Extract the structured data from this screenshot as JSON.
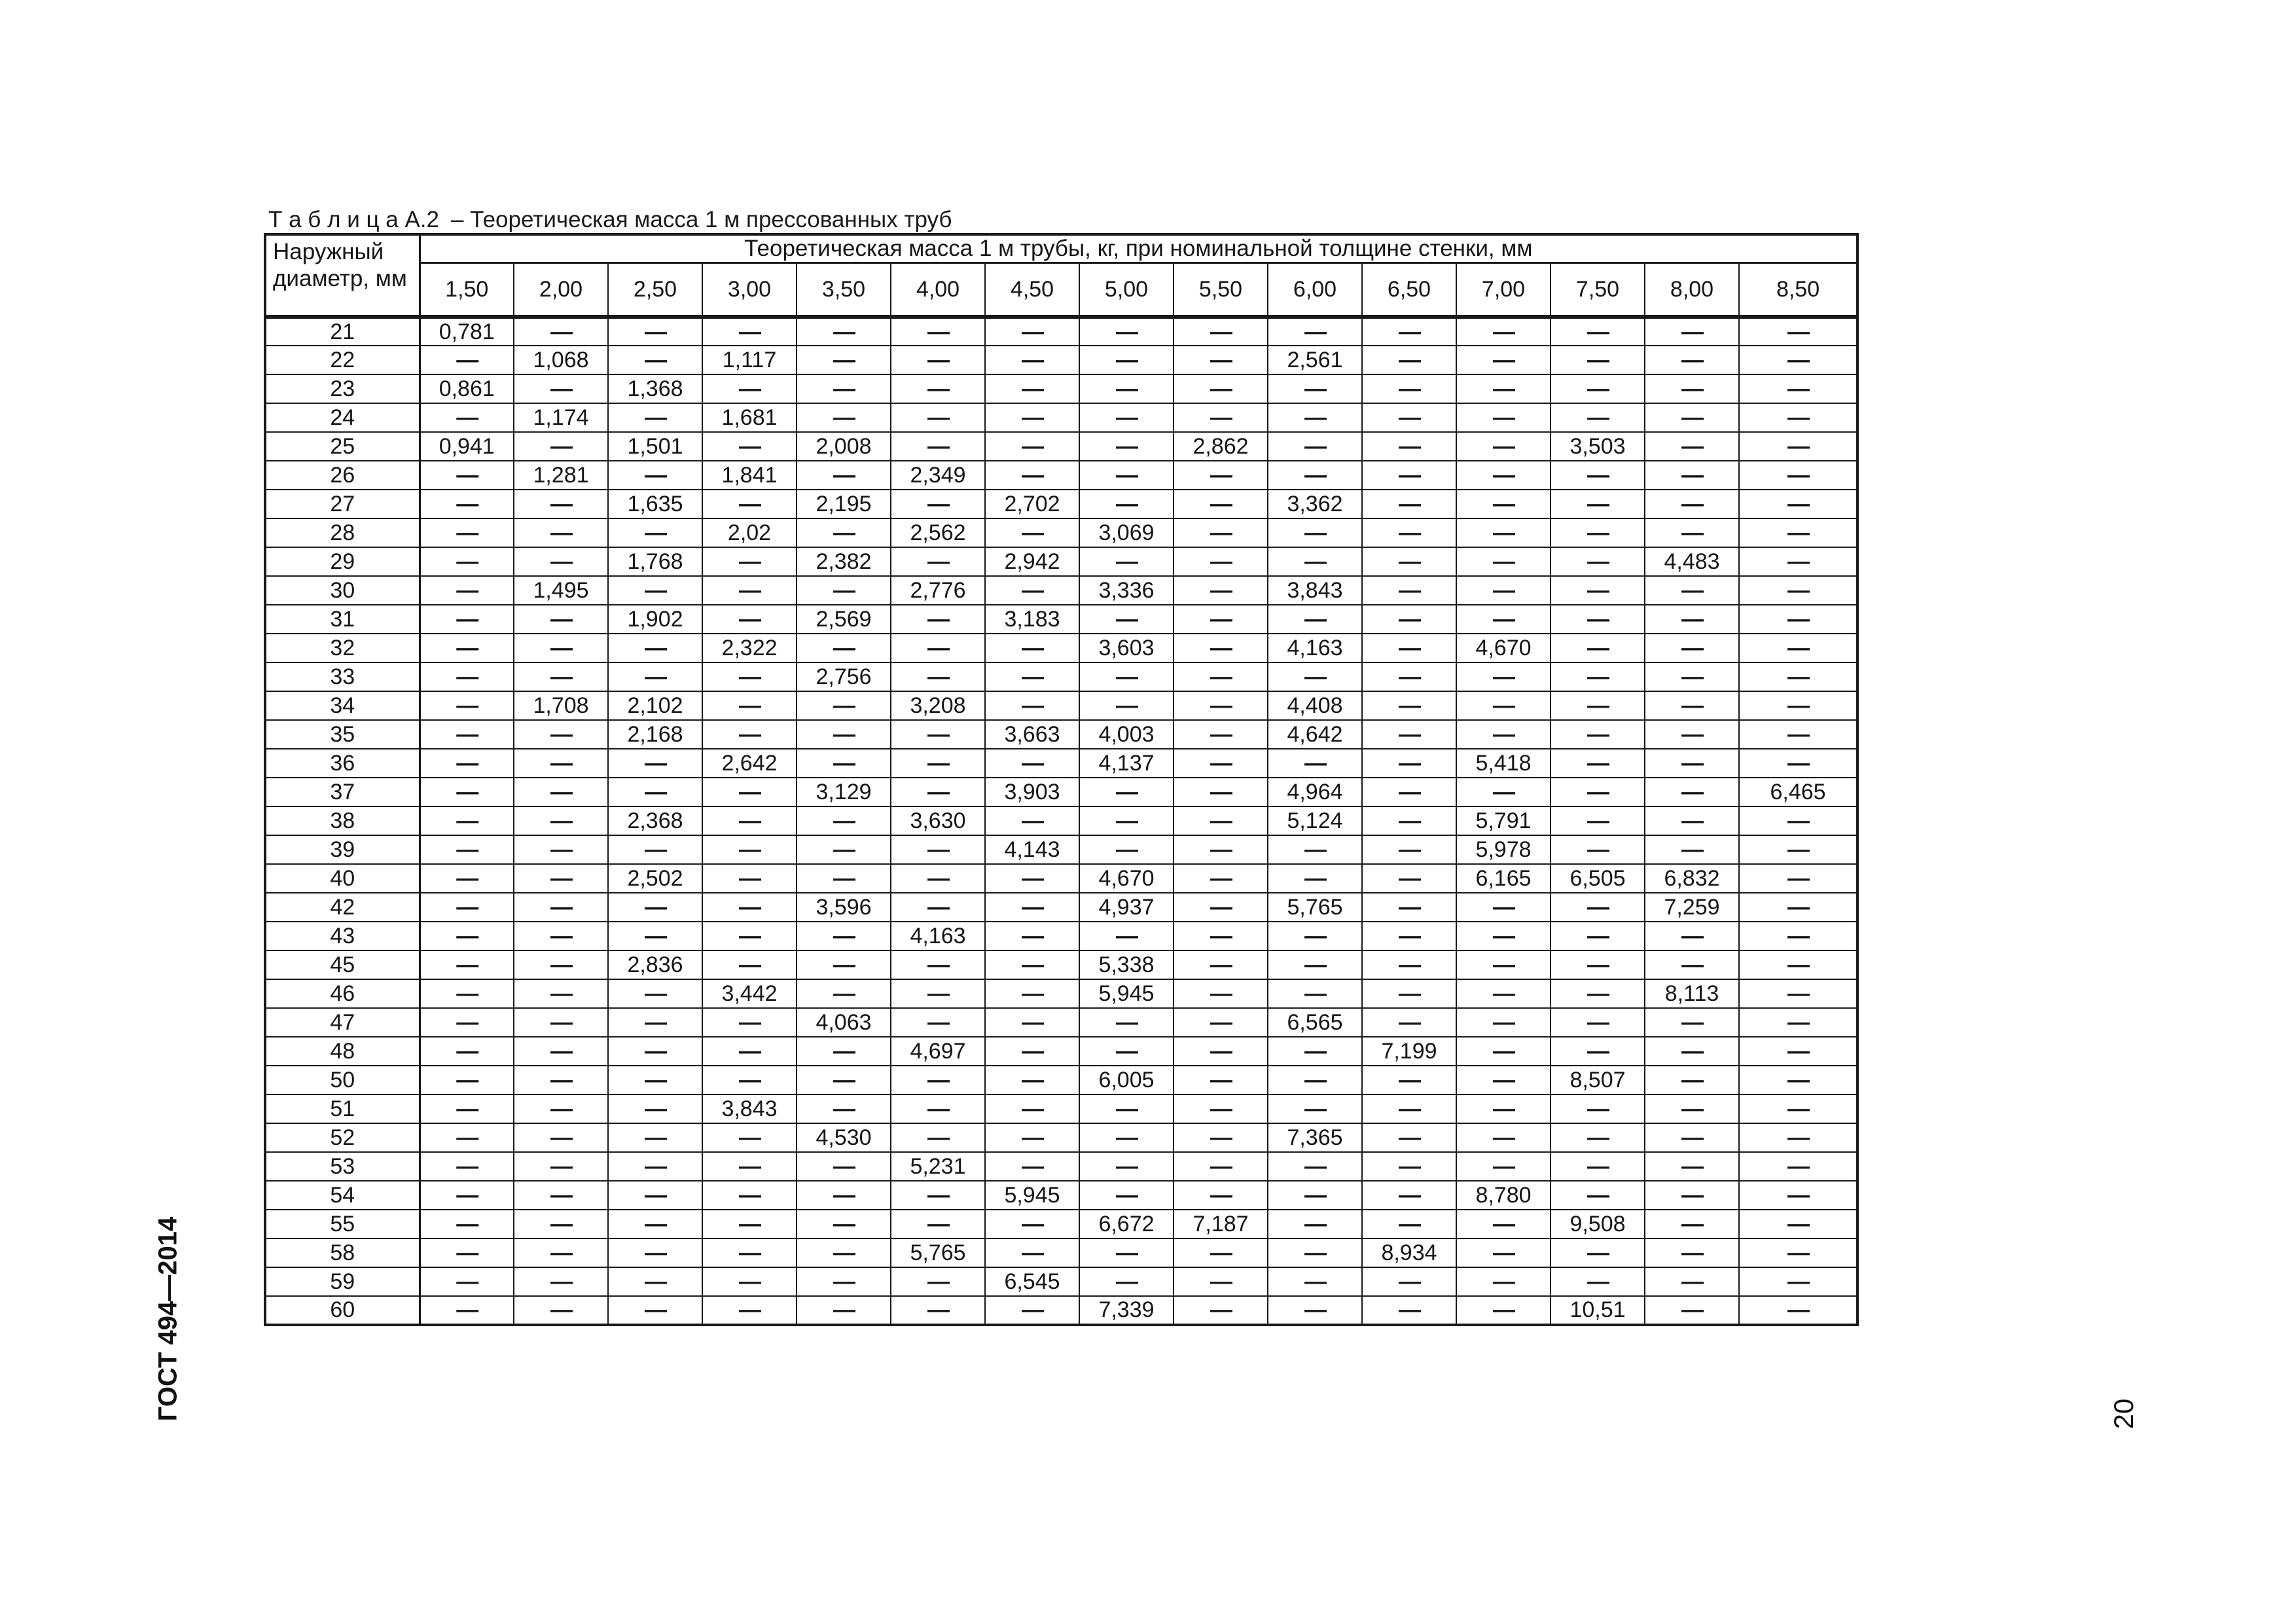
{
  "colors": {
    "paper": "#ffffff",
    "ink": "#1a1a1a"
  },
  "page": {
    "side_label": "ГОСТ 494—2014",
    "page_number": "20"
  },
  "table": {
    "caption_label": "Т а б л и ц а  А.2",
    "caption_title": "– Теоретическая масса 1 м прессованных труб",
    "corner_header": "Наружный диаметр, мм",
    "span_header": "Теоретическая масса 1 м трубы, кг, при номинальной толщине стенки, мм",
    "thickness_columns": [
      "1,50",
      "2,00",
      "2,50",
      "3,00",
      "3,50",
      "4,00",
      "4,50",
      "5,00",
      "5,50",
      "6,00",
      "6,50",
      "7,00",
      "7,50",
      "8,00",
      "8,50"
    ],
    "rows": [
      {
        "diameter": "21",
        "values": [
          "0,781",
          "—",
          "—",
          "—",
          "—",
          "—",
          "—",
          "—",
          "—",
          "—",
          "—",
          "—",
          "—",
          "—",
          "—"
        ]
      },
      {
        "diameter": "22",
        "values": [
          "—",
          "1,068",
          "—",
          "1,117",
          "—",
          "—",
          "—",
          "—",
          "—",
          "2,561",
          "—",
          "—",
          "—",
          "—",
          "—"
        ]
      },
      {
        "diameter": "23",
        "values": [
          "0,861",
          "—",
          "1,368",
          "—",
          "—",
          "—",
          "—",
          "—",
          "—",
          "—",
          "—",
          "—",
          "—",
          "—",
          "—"
        ]
      },
      {
        "diameter": "24",
        "values": [
          "—",
          "1,174",
          "—",
          "1,681",
          "—",
          "—",
          "—",
          "—",
          "—",
          "—",
          "—",
          "—",
          "—",
          "—",
          "—"
        ]
      },
      {
        "diameter": "25",
        "values": [
          "0,941",
          "—",
          "1,501",
          "—",
          "2,008",
          "—",
          "—",
          "—",
          "2,862",
          "—",
          "—",
          "—",
          "3,503",
          "—",
          "—"
        ]
      },
      {
        "diameter": "26",
        "values": [
          "—",
          "1,281",
          "—",
          "1,841",
          "—",
          "2,349",
          "—",
          "—",
          "—",
          "—",
          "—",
          "—",
          "—",
          "—",
          "—"
        ]
      },
      {
        "diameter": "27",
        "values": [
          "—",
          "—",
          "1,635",
          "—",
          "2,195",
          "—",
          "2,702",
          "—",
          "—",
          "3,362",
          "—",
          "—",
          "—",
          "—",
          "—"
        ]
      },
      {
        "diameter": "28",
        "values": [
          "—",
          "—",
          "—",
          "2,02",
          "—",
          "2,562",
          "—",
          "3,069",
          "—",
          "—",
          "—",
          "—",
          "—",
          "—",
          "—"
        ]
      },
      {
        "diameter": "29",
        "values": [
          "—",
          "—",
          "1,768",
          "—",
          "2,382",
          "—",
          "2,942",
          "—",
          "—",
          "—",
          "—",
          "—",
          "—",
          "4,483",
          "—"
        ]
      },
      {
        "diameter": "30",
        "values": [
          "—",
          "1,495",
          "—",
          "—",
          "—",
          "2,776",
          "—",
          "3,336",
          "—",
          "3,843",
          "—",
          "—",
          "—",
          "—",
          "—"
        ]
      },
      {
        "diameter": "31",
        "values": [
          "—",
          "—",
          "1,902",
          "—",
          "2,569",
          "—",
          "3,183",
          "—",
          "—",
          "—",
          "—",
          "—",
          "—",
          "—",
          "—"
        ]
      },
      {
        "diameter": "32",
        "values": [
          "—",
          "—",
          "—",
          "2,322",
          "—",
          "—",
          "—",
          "3,603",
          "—",
          "4,163",
          "—",
          "4,670",
          "—",
          "—",
          "—"
        ]
      },
      {
        "diameter": "33",
        "values": [
          "—",
          "—",
          "—",
          "—",
          "2,756",
          "—",
          "—",
          "—",
          "—",
          "—",
          "—",
          "—",
          "—",
          "—",
          "—"
        ]
      },
      {
        "diameter": "34",
        "values": [
          "—",
          "1,708",
          "2,102",
          "—",
          "—",
          "3,208",
          "—",
          "—",
          "—",
          "4,408",
          "—",
          "—",
          "—",
          "—",
          "—"
        ]
      },
      {
        "diameter": "35",
        "values": [
          "—",
          "—",
          "2,168",
          "—",
          "—",
          "—",
          "3,663",
          "4,003",
          "—",
          "4,642",
          "—",
          "—",
          "—",
          "—",
          "—"
        ]
      },
      {
        "diameter": "36",
        "values": [
          "—",
          "—",
          "—",
          "2,642",
          "—",
          "—",
          "—",
          "4,137",
          "—",
          "—",
          "—",
          "5,418",
          "—",
          "—",
          "—"
        ]
      },
      {
        "diameter": "37",
        "values": [
          "—",
          "—",
          "—",
          "—",
          "3,129",
          "—",
          "3,903",
          "—",
          "—",
          "4,964",
          "—",
          "—",
          "—",
          "—",
          "6,465"
        ]
      },
      {
        "diameter": "38",
        "values": [
          "—",
          "—",
          "2,368",
          "—",
          "—",
          "3,630",
          "—",
          "—",
          "—",
          "5,124",
          "—",
          "5,791",
          "—",
          "—",
          "—"
        ]
      },
      {
        "diameter": "39",
        "values": [
          "—",
          "—",
          "—",
          "—",
          "—",
          "—",
          "4,143",
          "—",
          "—",
          "—",
          "—",
          "5,978",
          "—",
          "—",
          "—"
        ]
      },
      {
        "diameter": "40",
        "values": [
          "—",
          "—",
          "2,502",
          "—",
          "—",
          "—",
          "—",
          "4,670",
          "—",
          "—",
          "—",
          "6,165",
          "6,505",
          "6,832",
          "—"
        ]
      },
      {
        "diameter": "42",
        "values": [
          "—",
          "—",
          "—",
          "—",
          "3,596",
          "—",
          "—",
          "4,937",
          "—",
          "5,765",
          "—",
          "—",
          "—",
          "7,259",
          "—"
        ]
      },
      {
        "diameter": "43",
        "values": [
          "—",
          "—",
          "—",
          "—",
          "—",
          "4,163",
          "—",
          "—",
          "—",
          "—",
          "—",
          "—",
          "—",
          "—",
          "—"
        ]
      },
      {
        "diameter": "45",
        "values": [
          "—",
          "—",
          "2,836",
          "—",
          "—",
          "—",
          "—",
          "5,338",
          "—",
          "—",
          "—",
          "—",
          "—",
          "—",
          "—"
        ]
      },
      {
        "diameter": "46",
        "values": [
          "—",
          "—",
          "—",
          "3,442",
          "—",
          "—",
          "—",
          "5,945",
          "—",
          "—",
          "—",
          "—",
          "—",
          "8,113",
          "—"
        ]
      },
      {
        "diameter": "47",
        "values": [
          "—",
          "—",
          "—",
          "—",
          "4,063",
          "—",
          "—",
          "—",
          "—",
          "6,565",
          "—",
          "—",
          "—",
          "—",
          "—"
        ]
      },
      {
        "diameter": "48",
        "values": [
          "—",
          "—",
          "—",
          "—",
          "—",
          "4,697",
          "—",
          "—",
          "—",
          "—",
          "7,199",
          "—",
          "—",
          "—",
          "—"
        ]
      },
      {
        "diameter": "50",
        "values": [
          "—",
          "—",
          "—",
          "—",
          "—",
          "—",
          "—",
          "6,005",
          "—",
          "—",
          "—",
          "—",
          "8,507",
          "—",
          "—"
        ]
      },
      {
        "diameter": "51",
        "values": [
          "—",
          "—",
          "—",
          "3,843",
          "—",
          "—",
          "—",
          "—",
          "—",
          "—",
          "—",
          "—",
          "—",
          "—",
          "—"
        ]
      },
      {
        "diameter": "52",
        "values": [
          "—",
          "—",
          "—",
          "—",
          "4,530",
          "—",
          "—",
          "—",
          "—",
          "7,365",
          "—",
          "—",
          "—",
          "—",
          "—"
        ]
      },
      {
        "diameter": "53",
        "values": [
          "—",
          "—",
          "—",
          "—",
          "—",
          "5,231",
          "—",
          "—",
          "—",
          "—",
          "—",
          "—",
          "—",
          "—",
          "—"
        ]
      },
      {
        "diameter": "54",
        "values": [
          "—",
          "—",
          "—",
          "—",
          "—",
          "—",
          "5,945",
          "—",
          "—",
          "—",
          "—",
          "8,780",
          "—",
          "—",
          "—"
        ]
      },
      {
        "diameter": "55",
        "values": [
          "—",
          "—",
          "—",
          "—",
          "—",
          "—",
          "—",
          "6,672",
          "7,187",
          "—",
          "—",
          "—",
          "9,508",
          "—",
          "—"
        ]
      },
      {
        "diameter": "58",
        "values": [
          "—",
          "—",
          "—",
          "—",
          "—",
          "5,765",
          "—",
          "—",
          "—",
          "—",
          "8,934",
          "—",
          "—",
          "—",
          "—"
        ]
      },
      {
        "diameter": "59",
        "values": [
          "—",
          "—",
          "—",
          "—",
          "—",
          "—",
          "6,545",
          "—",
          "—",
          "—",
          "—",
          "—",
          "—",
          "—",
          "—"
        ]
      },
      {
        "diameter": "60",
        "values": [
          "—",
          "—",
          "—",
          "—",
          "—",
          "—",
          "—",
          "7,339",
          "—",
          "—",
          "—",
          "—",
          "10,51",
          "—",
          "—"
        ]
      }
    ]
  }
}
